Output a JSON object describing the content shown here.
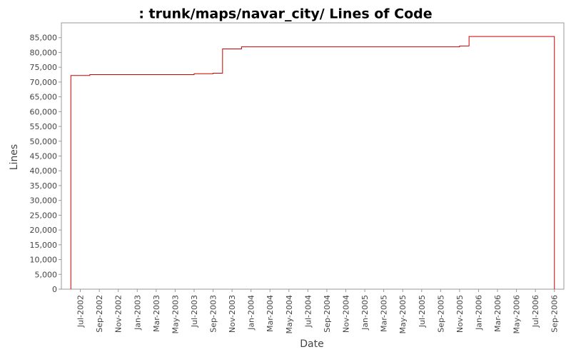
{
  "chart_data": {
    "type": "line",
    "step": true,
    "title": ": trunk/maps/navar_city/ Lines of Code",
    "x_label": "Date",
    "y_label": "Lines",
    "color": "#cc0000",
    "x": [
      "2002-06",
      "2002-06",
      "2002-08",
      "2003-07",
      "2003-09",
      "2003-10",
      "2003-12",
      "2005-11",
      "2005-12",
      "2006-09"
    ],
    "series": [
      {
        "name": "Lines",
        "color": "#cc0000",
        "values": [
          0,
          72200,
          72500,
          72800,
          73000,
          81200,
          81900,
          82200,
          85400,
          0
        ]
      }
    ],
    "xlim": [
      "2002-05",
      "2006-10"
    ],
    "xticks": [
      {
        "value": "2002-07",
        "label": "Jul-2002"
      },
      {
        "value": "2002-09",
        "label": "Sep-2002"
      },
      {
        "value": "2002-11",
        "label": "Nov-2002"
      },
      {
        "value": "2003-01",
        "label": "Jan-2003"
      },
      {
        "value": "2003-03",
        "label": "Mar-2003"
      },
      {
        "value": "2003-05",
        "label": "May-2003"
      },
      {
        "value": "2003-07",
        "label": "Jul-2003"
      },
      {
        "value": "2003-09",
        "label": "Sep-2003"
      },
      {
        "value": "2003-11",
        "label": "Nov-2003"
      },
      {
        "value": "2004-01",
        "label": "Jan-2004"
      },
      {
        "value": "2004-03",
        "label": "Mar-2004"
      },
      {
        "value": "2004-05",
        "label": "May-2004"
      },
      {
        "value": "2004-07",
        "label": "Jul-2004"
      },
      {
        "value": "2004-09",
        "label": "Sep-2004"
      },
      {
        "value": "2004-11",
        "label": "Nov-2004"
      },
      {
        "value": "2005-01",
        "label": "Jan-2005"
      },
      {
        "value": "2005-03",
        "label": "Mar-2005"
      },
      {
        "value": "2005-05",
        "label": "May-2005"
      },
      {
        "value": "2005-07",
        "label": "Jul-2005"
      },
      {
        "value": "2005-09",
        "label": "Sep-2005"
      },
      {
        "value": "2005-11",
        "label": "Nov-2005"
      },
      {
        "value": "2006-01",
        "label": "Jan-2006"
      },
      {
        "value": "2006-03",
        "label": "Mar-2006"
      },
      {
        "value": "2006-05",
        "label": "May-2006"
      },
      {
        "value": "2006-07",
        "label": "Jul-2006"
      },
      {
        "value": "2006-09",
        "label": "Sep-2006"
      }
    ],
    "ylim": [
      0,
      90000
    ],
    "yticks": [
      0,
      {
        "value": 5000,
        "label": "5,000"
      },
      {
        "value": 10000,
        "label": "10,000"
      },
      {
        "value": 15000,
        "label": "15,000"
      },
      {
        "value": 20000,
        "label": "20,000"
      },
      {
        "value": 25000,
        "label": "25,000"
      },
      {
        "value": 30000,
        "label": "30,000"
      },
      {
        "value": 35000,
        "label": "35,000"
      },
      {
        "value": 40000,
        "label": "40,000"
      },
      {
        "value": 45000,
        "label": "45,000"
      },
      {
        "value": 50000,
        "label": "50,000"
      },
      {
        "value": 55000,
        "label": "55,000"
      },
      {
        "value": 60000,
        "label": "60,000"
      },
      {
        "value": 65000,
        "label": "65,000"
      },
      {
        "value": 70000,
        "label": "70,000"
      },
      {
        "value": 75000,
        "label": "75,000"
      },
      {
        "value": 80000,
        "label": "80,000"
      },
      {
        "value": 85000,
        "label": "85,000"
      }
    ],
    "grid": false
  }
}
